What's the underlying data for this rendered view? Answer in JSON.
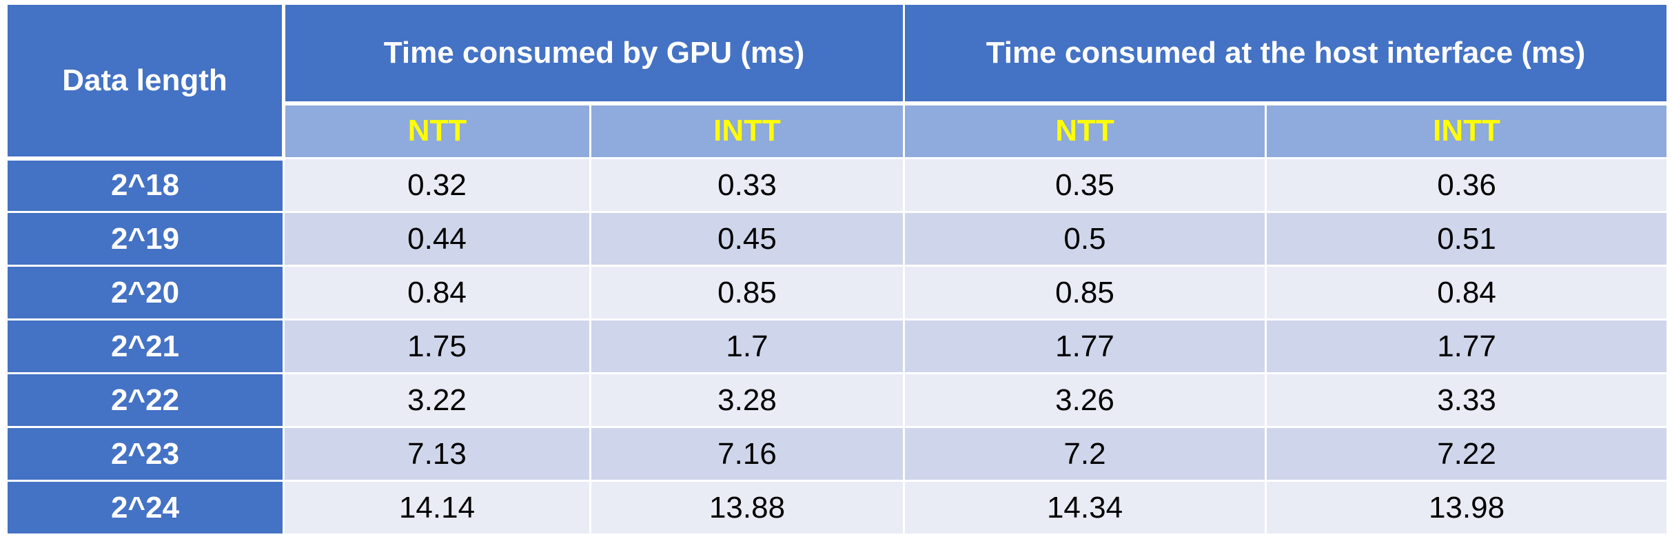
{
  "table": {
    "header": {
      "corner_label": "Data length",
      "group_gpu": "Time consumed by GPU (ms)",
      "group_host": "Time consumed at the host interface (ms)",
      "sub_labels": [
        "NTT",
        "INTT",
        "NTT",
        "INTT"
      ]
    },
    "rows": [
      {
        "length": "2^18",
        "gpu_ntt": "0.32",
        "gpu_intt": "0.33",
        "host_ntt": "0.35",
        "host_intt": "0.36"
      },
      {
        "length": "2^19",
        "gpu_ntt": "0.44",
        "gpu_intt": "0.45",
        "host_ntt": "0.5",
        "host_intt": "0.51"
      },
      {
        "length": "2^20",
        "gpu_ntt": "0.84",
        "gpu_intt": "0.85",
        "host_ntt": "0.85",
        "host_intt": "0.84"
      },
      {
        "length": "2^21",
        "gpu_ntt": "1.75",
        "gpu_intt": "1.7",
        "host_ntt": "1.77",
        "host_intt": "1.77"
      },
      {
        "length": "2^22",
        "gpu_ntt": "3.22",
        "gpu_intt": "3.28",
        "host_ntt": "3.26",
        "host_intt": "3.33"
      },
      {
        "length": "2^23",
        "gpu_ntt": "7.13",
        "gpu_intt": "7.16",
        "host_ntt": "7.2",
        "host_intt": "7.22"
      },
      {
        "length": "2^24",
        "gpu_ntt": "14.14",
        "gpu_intt": "13.88",
        "host_ntt": "14.34",
        "host_intt": "13.98"
      }
    ],
    "colors": {
      "header_dark": "#4472c4",
      "header_light": "#8faadc",
      "subheader_text": "#ffff00",
      "row_light": "#e9ebf5",
      "row_mid": "#cfd5ea"
    }
  }
}
